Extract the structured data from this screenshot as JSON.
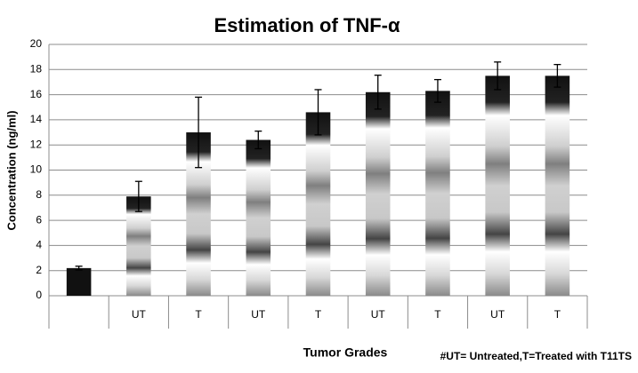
{
  "chart_data": {
    "type": "bar",
    "title": "Estimation of TNF-α",
    "categories": [
      null,
      "UT",
      "T",
      "UT",
      "T",
      "UT",
      "T",
      "UT",
      "T"
    ],
    "values": [
      2.2,
      7.9,
      13.0,
      12.4,
      14.6,
      16.2,
      16.3,
      17.5,
      17.5
    ],
    "errors": [
      0.15,
      1.2,
      2.8,
      0.7,
      1.8,
      1.35,
      0.9,
      1.1,
      0.9
    ],
    "color": "#7f7f7f",
    "ylim": [
      0,
      20
    ],
    "yticks": [
      0,
      2,
      4,
      6,
      8,
      10,
      12,
      14,
      16,
      18,
      20
    ],
    "grid": true,
    "x_label": "Tumor Grades",
    "y_label": "Concentration (ng/ml)",
    "note": "#UT= Untreated,T=Treated with T11TS"
  }
}
